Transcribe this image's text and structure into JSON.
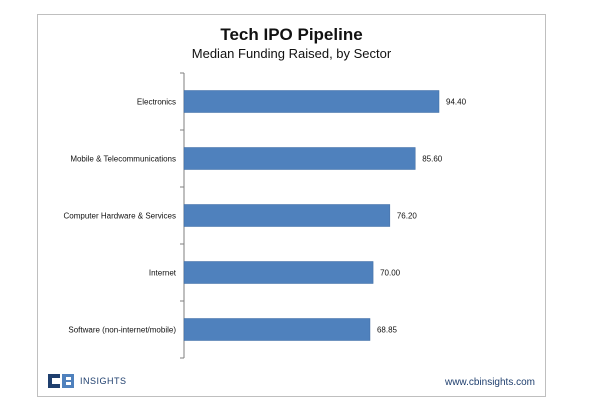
{
  "colors": {
    "bar": "#4f81bd",
    "bar_stroke": "#3c6aa1",
    "axis": "#7f7f7f"
  },
  "chart_data": {
    "type": "bar",
    "orientation": "horizontal",
    "title": "Tech IPO Pipeline",
    "subtitle": "Median Funding Raised, by Sector",
    "xlabel": "",
    "ylabel": "",
    "categories": [
      "Electronics",
      "Mobile & Telecommunications",
      "Computer Hardware & Services",
      "Internet",
      "Software (non-internet/mobile)"
    ],
    "values": [
      94.4,
      85.6,
      76.2,
      70.0,
      68.85
    ],
    "value_labels": [
      "94.40",
      "85.60",
      "76.20",
      "70.00",
      "68.85"
    ],
    "xlim": [
      0,
      100
    ],
    "grid": false,
    "legend": "none"
  },
  "footer": {
    "logo_text": "INSIGHTS",
    "logo_icon": "cb-insights-logo",
    "url": "www.cbinsights.com"
  }
}
